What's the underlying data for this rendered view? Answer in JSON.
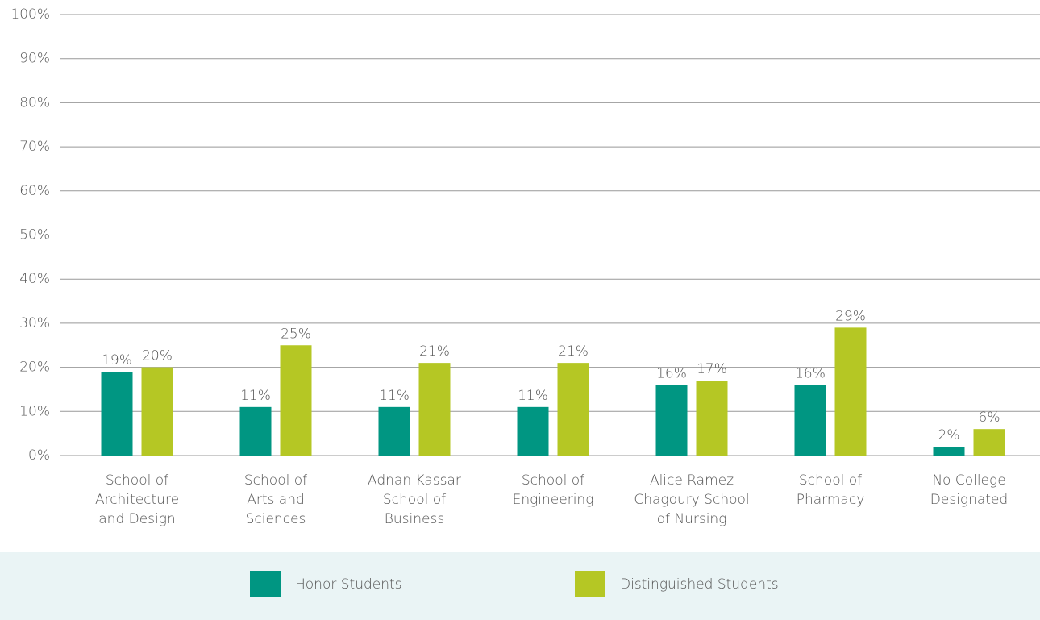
{
  "chart_data": {
    "type": "bar",
    "categories": [
      "School of\nArchitecture\nand Design",
      "School of\nArts and\nSciences",
      "Adnan Kassar\nSchool of\nBusiness",
      "School of\nEngineering",
      "Alice Ramez\nChagoury School\nof Nursing",
      "School of\nPharmacy",
      "No College\nDesignated"
    ],
    "series": [
      {
        "name": "Honor Students",
        "color": "#009682",
        "values": [
          19,
          11,
          11,
          11,
          16,
          16,
          2
        ],
        "value_labels": [
          "19%",
          "11%",
          "11%",
          "11%",
          "16%",
          "16%",
          "2%"
        ]
      },
      {
        "name": "Distinguished Students",
        "color": "#b5c724",
        "values": [
          20,
          25,
          21,
          21,
          17,
          29,
          6
        ],
        "value_labels": [
          "20%",
          "25%",
          "21%",
          "21%",
          "17%",
          "29%",
          "6%"
        ]
      }
    ],
    "ylim": [
      0,
      100
    ],
    "yticks": [
      {
        "value": 0,
        "label": "0%"
      },
      {
        "value": 10,
        "label": "10%"
      },
      {
        "value": 20,
        "label": "20%"
      },
      {
        "value": 30,
        "label": "30%"
      },
      {
        "value": 40,
        "label": "40%"
      },
      {
        "value": 50,
        "label": "50%"
      },
      {
        "value": 60,
        "label": "60%"
      },
      {
        "value": 70,
        "label": "70%"
      },
      {
        "value": 80,
        "label": "80%"
      },
      {
        "value": 90,
        "label": "90%"
      },
      {
        "value": 100,
        "label": "100%"
      }
    ],
    "grid": true,
    "legend": "bottom"
  }
}
